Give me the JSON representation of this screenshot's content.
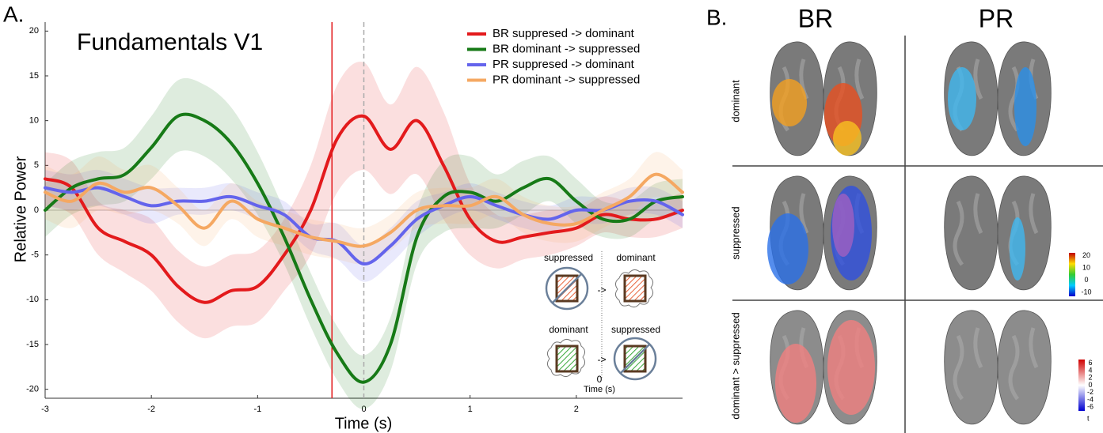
{
  "chart_data": {
    "type": "line",
    "panel_label": "A.",
    "title": "Fundamentals V1",
    "x_label": "Time (s)",
    "y_label": "Relative Power",
    "x": [
      -3,
      -2.75,
      -2.5,
      -2.25,
      -2,
      -1.75,
      -1.5,
      -1.25,
      -1,
      -0.75,
      -0.5,
      -0.25,
      0,
      0.25,
      0.5,
      0.75,
      1,
      1.25,
      1.5,
      1.75,
      2,
      2.25,
      2.5,
      2.75,
      3
    ],
    "series": [
      {
        "name": "BR suppresed -> dominant",
        "color": "#e31a1c",
        "values": [
          3.5,
          2.5,
          -2,
          -3.5,
          -5,
          -8.5,
          -10.3,
          -9,
          -8.5,
          -5,
          0,
          8,
          10.5,
          6.8,
          10,
          5,
          -1,
          -3.5,
          -3,
          -2.5,
          -2,
          -0.5,
          -1,
          -1,
          0
        ],
        "errors": [
          3,
          3,
          3,
          3.5,
          4,
          4,
          4,
          4,
          4,
          4,
          5,
          6,
          6,
          5,
          6,
          6,
          4,
          3,
          2.5,
          2.5,
          2,
          2,
          2,
          2,
          2
        ]
      },
      {
        "name": "BR dominant  -> suppressed",
        "color": "#177a17",
        "values": [
          0,
          2.5,
          3.5,
          4,
          7,
          10.5,
          10,
          7.5,
          3,
          -3,
          -10,
          -16,
          -19.2,
          -15,
          -3,
          1.5,
          2,
          1,
          2.5,
          3.5,
          1,
          -1,
          -1,
          1,
          1.5
        ],
        "errors": [
          3,
          3,
          3,
          3,
          3.5,
          4,
          4,
          4,
          3.5,
          3,
          3,
          3,
          3,
          3,
          3,
          4,
          4,
          3,
          3,
          2.5,
          2.5,
          2,
          2,
          2,
          2
        ]
      },
      {
        "name": "PR suppresed -> dominant",
        "color": "#6464ec",
        "values": [
          2.5,
          2,
          2.5,
          1.5,
          0.5,
          1,
          1,
          1.5,
          0.5,
          -0.5,
          -3,
          -3.5,
          -6,
          -4,
          -1,
          0.5,
          1.5,
          0.5,
          -0.5,
          -1,
          0,
          0,
          1,
          1,
          -0.5
        ],
        "errors": [
          2,
          2,
          2,
          2,
          2,
          1.5,
          1.5,
          1.5,
          1.5,
          1.5,
          1.5,
          2,
          2,
          2,
          2,
          1.5,
          1.5,
          1.5,
          1.5,
          1.5,
          1.5,
          1.5,
          1.5,
          1.5,
          1.5
        ]
      },
      {
        "name": "PR dominant  -> suppressed",
        "color": "#f5a862",
        "values": [
          2,
          1,
          3,
          2,
          2.5,
          0.5,
          -2,
          1,
          -1,
          -2,
          -3,
          -3.5,
          -4,
          -2.5,
          0,
          0.5,
          0.5,
          1.5,
          -0.5,
          -1.5,
          -1.5,
          0,
          1.5,
          4,
          2
        ],
        "errors": [
          3,
          3,
          3,
          2.5,
          2.5,
          2,
          2,
          2,
          2,
          2,
          2,
          2,
          2,
          2,
          2,
          2,
          2,
          2,
          2,
          2,
          2,
          2,
          2,
          2.5,
          2.5
        ]
      }
    ],
    "vlines": [
      {
        "x": -0.3,
        "color": "#e31a1c"
      },
      {
        "x": 0,
        "color": "#aaaaaa"
      }
    ],
    "xlim": [
      -3,
      3
    ],
    "xticks": [
      -3,
      -2,
      -1,
      0,
      1,
      2
    ],
    "ylim": [
      -21,
      21
    ],
    "yticks": [
      -20,
      -15,
      -10,
      -5,
      0,
      5,
      10,
      15,
      20
    ],
    "inset": {
      "top_left": "suppressed",
      "top_right": "dominant",
      "bottom_left": "dominant",
      "bottom_right": "suppressed",
      "arrow_top": "->",
      "arrow_bottom": "->",
      "zero": "0",
      "time": "Time (s)"
    }
  },
  "panel_b": {
    "panel_label": "B.",
    "columns": [
      "BR",
      "PR"
    ],
    "rows": [
      "dominant",
      "suppressed",
      "dominant > suppressed"
    ],
    "colorbar_1": {
      "ticks": [
        20,
        10,
        0,
        -10
      ]
    },
    "colorbar_2": {
      "ticks": [
        6,
        4,
        2,
        0,
        -2,
        -4,
        -6
      ],
      "label": "t"
    }
  }
}
